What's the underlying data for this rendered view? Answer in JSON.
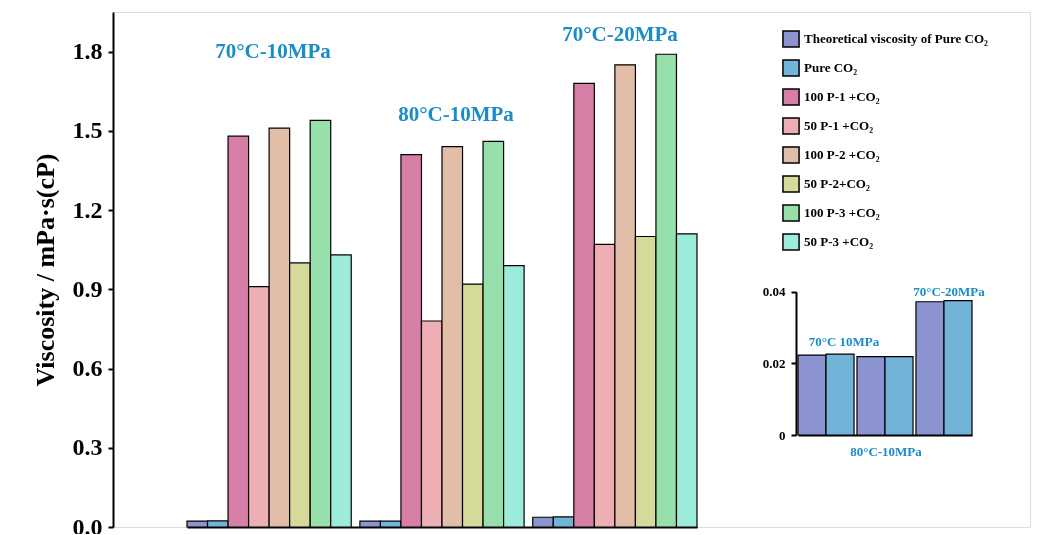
{
  "chart_data": [
    {
      "type": "bar",
      "ylabel": "Viscosity / mPa·s(cP)",
      "categories": [
        null,
        null,
        null
      ],
      "series": [
        {
          "name": "Theoretical viscosity of Pure CO₂",
          "color": "#8b93d0",
          "values": [
            0.022,
            0.022,
            0.037
          ]
        },
        {
          "name": "Pure CO₂",
          "color": "#72b4d8",
          "values": [
            0.023,
            0.022,
            0.038
          ]
        },
        {
          "name": "100 P-1 +CO₂",
          "color": "#d67ea5",
          "values": [
            1.48,
            1.41,
            1.68
          ]
        },
        {
          "name": "50 P-1 +CO₂",
          "color": "#edafb4",
          "values": [
            0.91,
            0.78,
            1.07
          ]
        },
        {
          "name": "100 P-2 +CO₂",
          "color": "#e2bea8",
          "values": [
            1.51,
            1.44,
            1.75
          ]
        },
        {
          "name": "50 P-2+CO₂",
          "color": "#d5d999",
          "values": [
            1.0,
            0.92,
            1.1
          ]
        },
        {
          "name": "100 P-3 +CO₂",
          "color": "#97e0ab",
          "values": [
            1.54,
            1.46,
            1.79
          ]
        },
        {
          "name": "50 P-3 +CO₂",
          "color": "#9debdb",
          "values": [
            1.03,
            0.99,
            1.11
          ]
        }
      ],
      "ylim": [
        0,
        1.95
      ],
      "yticks": [
        {
          "value": 0,
          "label": "0.0"
        },
        0.3,
        0.6,
        0.9,
        1.2,
        1.5,
        1.8
      ],
      "tick_labels": "y",
      "legend": "top right",
      "grid": false,
      "annotations": [
        "70°C-10MPa",
        "80°C-10MPa",
        "70°C-20MPa"
      ]
    },
    {
      "type": "bar",
      "categories": [
        null,
        null,
        null
      ],
      "series": [
        {
          "color": "#8b93d0",
          "values": [
            0.0223,
            0.0219,
            0.0372
          ]
        },
        {
          "color": "#72b4d8",
          "values": [
            0.0226,
            0.0219,
            0.0375
          ]
        }
      ],
      "ylim": [
        0,
        0.04
      ],
      "yticks": [
        0,
        0.02,
        0.04
      ],
      "tick_labels": "y",
      "grid": false,
      "annotations": [
        "70°C 10MPa",
        "80°C-10MPa",
        "70°C-20MPa"
      ]
    }
  ]
}
